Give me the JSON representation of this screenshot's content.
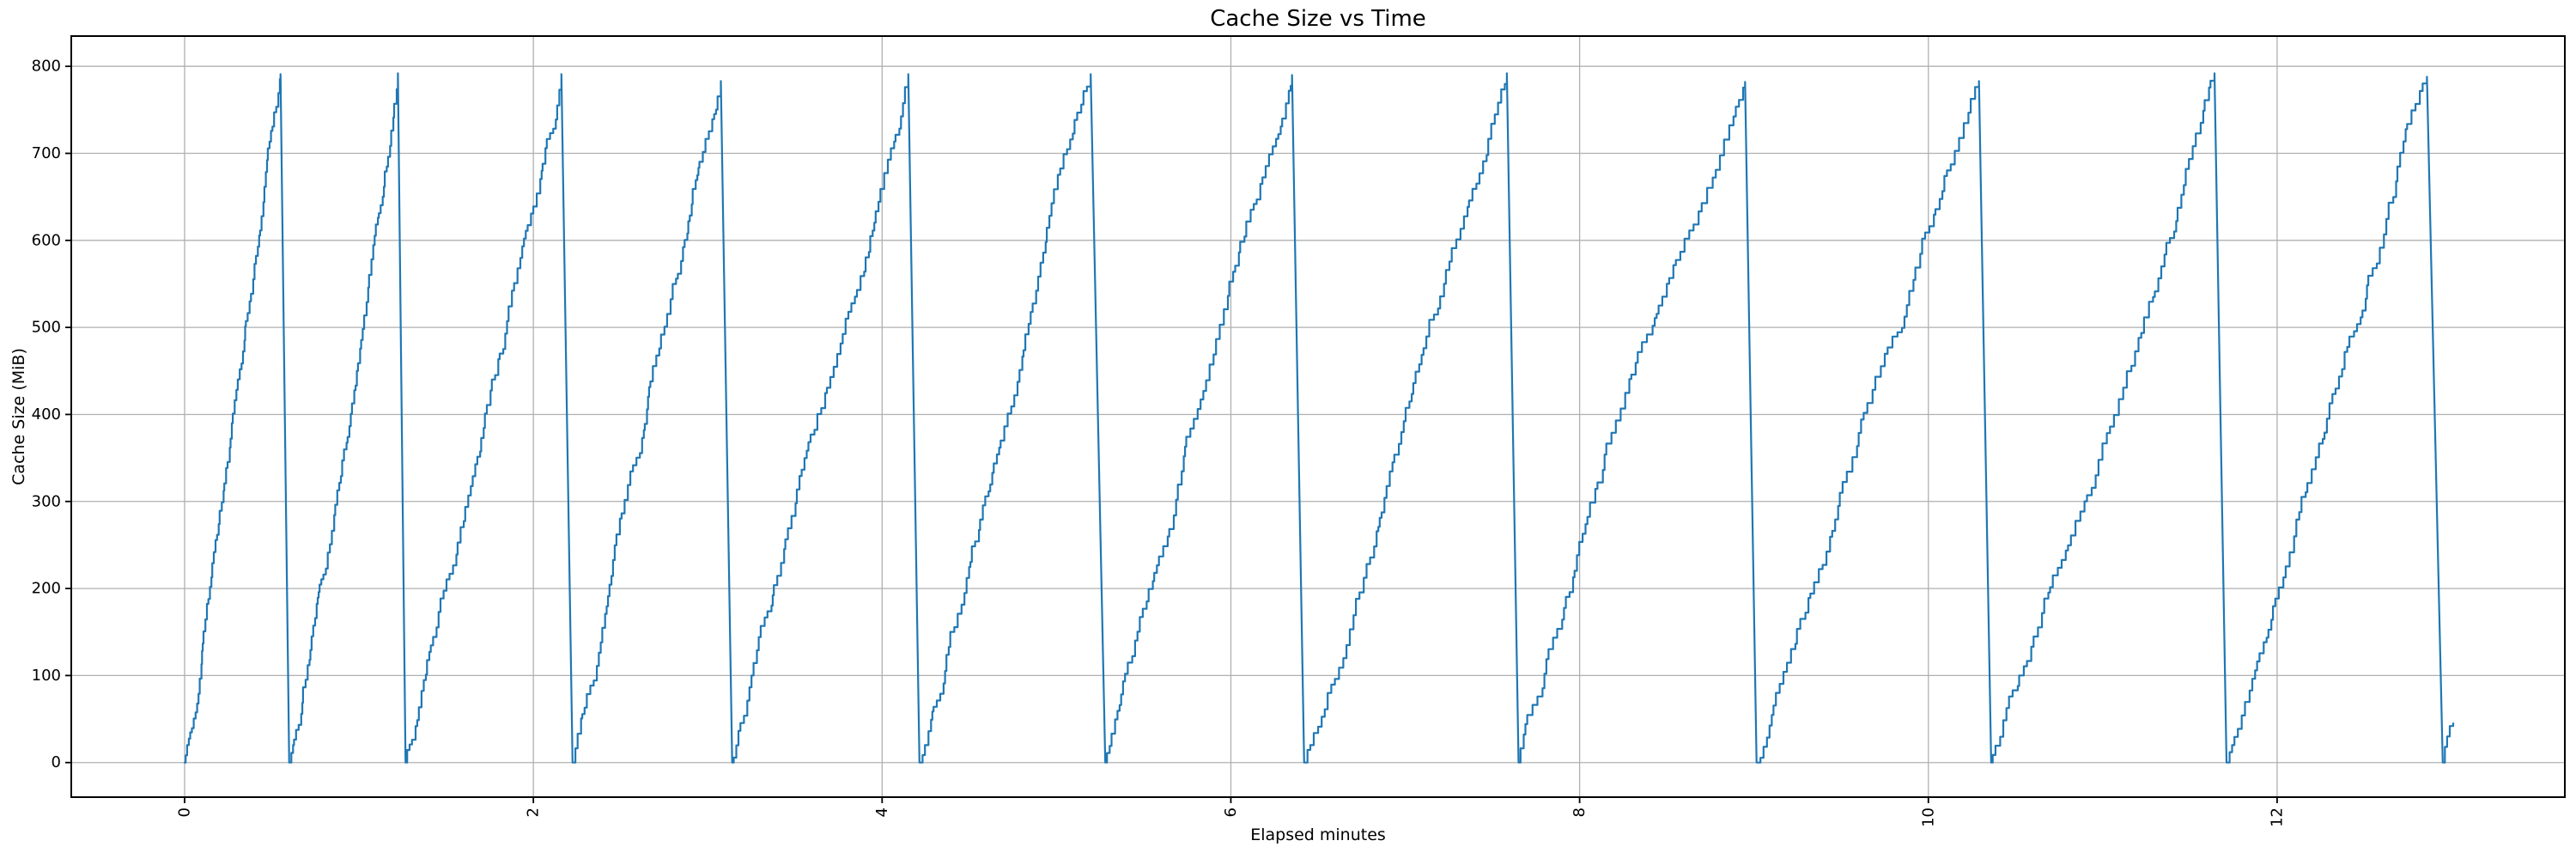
{
  "chart_data": {
    "type": "line",
    "title": "Cache Size vs Time",
    "xlabel": "Elapsed minutes",
    "ylabel": "Cache Size (MiB)",
    "xticks": [
      0,
      2,
      4,
      6,
      8,
      10,
      12
    ],
    "yticks": [
      0,
      100,
      200,
      300,
      400,
      500,
      600,
      700,
      800
    ],
    "xlim": [
      -0.65,
      13.65
    ],
    "ylim": [
      -39.75,
      834.75
    ],
    "grid": true,
    "legend": "none",
    "line_color": "#1f77b4",
    "grid_color": "#b0b0b0",
    "spine_color": "#000000",
    "pattern": "sawtooth-staircase",
    "description": "Cache size climbs from 0 in small ~10-30 MiB steps up to about 790 MiB, then is evicted almost instantly back to 0; 12 full cycles over ~13 minutes, cycle length growing from ~0.6 min to ~1.3 min, with a small partial rise to ~45 MiB at the very end.",
    "step_size_mib": 12,
    "cycles": [
      {
        "rise_start": 0.0,
        "peak_time": 0.55,
        "peak_value": 791,
        "drop_end": 0.6
      },
      {
        "rise_start": 0.6,
        "peak_time": 1.223,
        "peak_value": 792,
        "drop_end": 1.267
      },
      {
        "rise_start": 1.267,
        "peak_time": 2.161,
        "peak_value": 791,
        "drop_end": 2.225
      },
      {
        "rise_start": 2.225,
        "peak_time": 3.075,
        "peak_value": 783,
        "drop_end": 3.14
      },
      {
        "rise_start": 3.14,
        "peak_time": 4.15,
        "peak_value": 791,
        "drop_end": 4.214
      },
      {
        "rise_start": 4.214,
        "peak_time": 5.196,
        "peak_value": 791,
        "drop_end": 5.28
      },
      {
        "rise_start": 5.28,
        "peak_time": 6.351,
        "peak_value": 790,
        "drop_end": 6.42
      },
      {
        "rise_start": 6.42,
        "peak_time": 7.583,
        "peak_value": 792,
        "drop_end": 7.65
      },
      {
        "rise_start": 7.65,
        "peak_time": 8.949,
        "peak_value": 782,
        "drop_end": 9.015
      },
      {
        "rise_start": 9.015,
        "peak_time": 10.29,
        "peak_value": 783,
        "drop_end": 10.36
      },
      {
        "rise_start": 10.36,
        "peak_time": 11.641,
        "peak_value": 792,
        "drop_end": 11.71
      },
      {
        "rise_start": 11.71,
        "peak_time": 12.859,
        "peak_value": 788,
        "drop_end": 12.95
      }
    ],
    "tail_points": [
      [
        12.962,
        18
      ],
      [
        12.975,
        30
      ],
      [
        12.99,
        42
      ],
      [
        13.01,
        45
      ]
    ]
  }
}
